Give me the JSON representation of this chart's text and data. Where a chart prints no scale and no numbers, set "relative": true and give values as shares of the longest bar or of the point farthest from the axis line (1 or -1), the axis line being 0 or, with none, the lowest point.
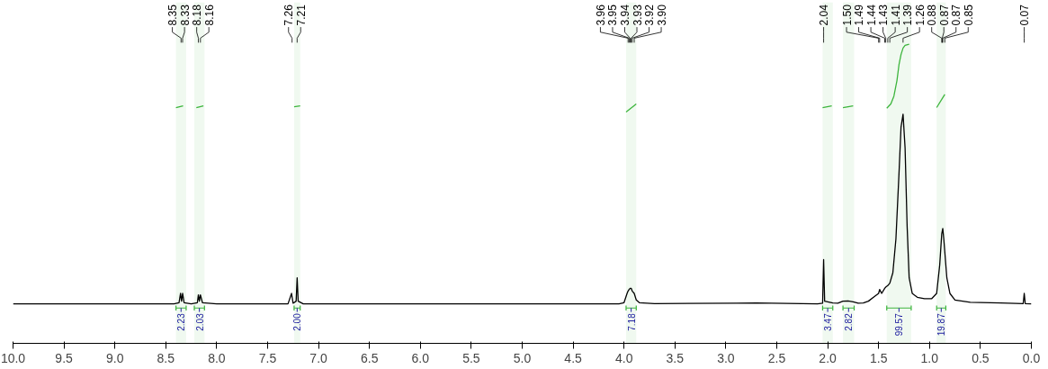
{
  "chart_data": {
    "type": "line",
    "relative": true,
    "tick_labels": "x",
    "grid": false,
    "marker": "none",
    "xlim": [
      10,
      0
    ],
    "xticks": [
      {
        "value": 10,
        "label": "10.0"
      },
      {
        "value": 9.5,
        "label": "9.5"
      },
      {
        "value": 9,
        "label": "9.0"
      },
      {
        "value": 8.5,
        "label": "8.5"
      },
      {
        "value": 8,
        "label": "8.0"
      },
      {
        "value": 7.5,
        "label": "7.5"
      },
      {
        "value": 7,
        "label": "7.0"
      },
      {
        "value": 6.5,
        "label": "6.5"
      },
      {
        "value": 6,
        "label": "6.0"
      },
      {
        "value": 5.5,
        "label": "5.5"
      },
      {
        "value": 5,
        "label": "5.0"
      },
      {
        "value": 4.5,
        "label": "4.5"
      },
      {
        "value": 4,
        "label": "4.0"
      },
      {
        "value": 3.5,
        "label": "3.5"
      },
      {
        "value": 3,
        "label": "3.0"
      },
      {
        "value": 2.5,
        "label": "2.5"
      },
      {
        "value": 2,
        "label": "2.0"
      },
      {
        "value": 1.5,
        "label": "1.5"
      },
      {
        "value": 1,
        "label": "1.0"
      },
      {
        "value": 0.5,
        "label": "0.5"
      },
      {
        "value": 0,
        "label": "0.0"
      }
    ],
    "series": [
      {
        "color": "#000000",
        "x": [
          10,
          8.42,
          8.37,
          8.355,
          8.345,
          8.335,
          8.32,
          8.25,
          8.19,
          8.18,
          8.17,
          8.16,
          8.14,
          8.0,
          7.3,
          7.265,
          7.25,
          7.22,
          7.21,
          7.2,
          7.15,
          4.05,
          4.0,
          3.97,
          3.96,
          3.95,
          3.94,
          3.93,
          3.92,
          3.9,
          3.88,
          3.85,
          3.7,
          2.9,
          2.7,
          2.1,
          2.05,
          2.04,
          2.03,
          2.0,
          1.95,
          1.9,
          1.85,
          1.8,
          1.75,
          1.7,
          1.65,
          1.6,
          1.55,
          1.5,
          1.49,
          1.47,
          1.44,
          1.43,
          1.41,
          1.39,
          1.36,
          1.33,
          1.3,
          1.28,
          1.26,
          1.24,
          1.22,
          1.2,
          1.17,
          1.12,
          1.05,
          0.98,
          0.93,
          0.9,
          0.88,
          0.87,
          0.86,
          0.85,
          0.83,
          0.8,
          0.75,
          0.6,
          0.3,
          0.08,
          0.07,
          0.06,
          0
        ],
        "values": [
          0.132,
          0.132,
          0.136,
          0.167,
          0.141,
          0.167,
          0.136,
          0.132,
          0.136,
          0.162,
          0.141,
          0.162,
          0.136,
          0.132,
          0.132,
          0.167,
          0.134,
          0.141,
          0.219,
          0.141,
          0.132,
          0.132,
          0.136,
          0.167,
          0.175,
          0.18,
          0.184,
          0.184,
          0.175,
          0.167,
          0.145,
          0.136,
          0.133,
          0.134,
          0.135,
          0.132,
          0.134,
          0.28,
          0.141,
          0.139,
          0.135,
          0.134,
          0.141,
          0.142,
          0.139,
          0.134,
          0.135,
          0.141,
          0.154,
          0.167,
          0.18,
          0.167,
          0.184,
          0.188,
          0.193,
          0.201,
          0.236,
          0.349,
          0.566,
          0.722,
          0.766,
          0.653,
          0.392,
          0.219,
          0.167,
          0.154,
          0.149,
          0.149,
          0.167,
          0.262,
          0.366,
          0.384,
          0.349,
          0.306,
          0.219,
          0.167,
          0.145,
          0.137,
          0.135,
          0.133,
          0.167,
          0.133,
          0.132
        ]
      },
      {
        "color": "#3cb43c",
        "x": [
          8.4,
          8.33
        ],
        "values": [
          0.788,
          0.794
        ]
      },
      {
        "color": "#3cb43c",
        "x": [
          8.2,
          8.13
        ],
        "values": [
          0.788,
          0.794
        ]
      },
      {
        "color": "#3cb43c",
        "x": [
          7.24,
          7.18
        ],
        "values": [
          0.791,
          0.794
        ]
      },
      {
        "color": "#3cb43c",
        "x": [
          3.98,
          3.88
        ],
        "values": [
          0.773,
          0.8
        ]
      },
      {
        "color": "#3cb43c",
        "x": [
          2.05,
          1.96
        ],
        "values": [
          0.788,
          0.794
        ]
      },
      {
        "color": "#3cb43c",
        "x": [
          1.85,
          1.75
        ],
        "values": [
          0.788,
          0.794
        ]
      },
      {
        "color": "#3cb43c",
        "x": [
          1.42,
          1.38,
          1.35,
          1.32,
          1.3,
          1.28,
          1.26,
          1.24,
          1.2
        ],
        "values": [
          0.786,
          0.8,
          0.826,
          0.878,
          0.931,
          0.965,
          0.987,
          0.996,
          1.0
        ]
      },
      {
        "color": "#3cb43c",
        "x": [
          0.93,
          0.85
        ],
        "values": [
          0.788,
          0.832
        ]
      }
    ],
    "bands": [
      {
        "axis": "x",
        "from": 8.4,
        "to": 8.3,
        "label": "2.23",
        "color": "#3cb43c"
      },
      {
        "axis": "x",
        "from": 8.22,
        "to": 8.12,
        "label": "2.03",
        "color": "#3cb43c"
      },
      {
        "axis": "x",
        "from": 7.24,
        "to": 7.18,
        "label": "2.00",
        "color": "#3cb43c"
      },
      {
        "axis": "x",
        "from": 3.98,
        "to": 3.88,
        "label": "7.18",
        "color": "#3cb43c"
      },
      {
        "axis": "x",
        "from": 2.05,
        "to": 1.95,
        "label": "3.47",
        "color": "#3cb43c"
      },
      {
        "axis": "x",
        "from": 1.85,
        "to": 1.74,
        "label": "2.82",
        "color": "#3cb43c"
      },
      {
        "axis": "x",
        "from": 1.42,
        "to": 1.18,
        "label": "99.57",
        "color": "#3cb43c"
      },
      {
        "axis": "x",
        "from": 0.93,
        "to": 0.84,
        "label": "19.87",
        "color": "#3cb43c"
      }
    ],
    "annotations": [
      {
        "text": "8.35",
        "x": 8.35
      },
      {
        "text": "8.33",
        "x": 8.335
      },
      {
        "text": "8.18",
        "x": 8.18
      },
      {
        "text": "8.16",
        "x": 8.16
      },
      {
        "text": "7.26",
        "x": 7.26
      },
      {
        "text": "7.21",
        "x": 7.21
      },
      {
        "text": "3.96",
        "x": 3.96
      },
      {
        "text": "3.95",
        "x": 3.95
      },
      {
        "text": "3.94",
        "x": 3.94
      },
      {
        "text": "3.93",
        "x": 3.93
      },
      {
        "text": "3.92",
        "x": 3.92
      },
      {
        "text": "3.90",
        "x": 3.9
      },
      {
        "text": "2.04",
        "x": 2.04
      },
      {
        "text": "1.50",
        "x": 1.5
      },
      {
        "text": "1.49",
        "x": 1.49
      },
      {
        "text": "1.44",
        "x": 1.44
      },
      {
        "text": "1.43",
        "x": 1.43
      },
      {
        "text": "1.41",
        "x": 1.41
      },
      {
        "text": "1.39",
        "x": 1.39
      },
      {
        "text": "1.26",
        "x": 1.26
      },
      {
        "text": "0.88",
        "x": 0.88
      },
      {
        "text": "0.87",
        "x": 0.875
      },
      {
        "text": "0.87",
        "x": 0.87
      },
      {
        "text": "0.85",
        "x": 0.85
      },
      {
        "text": "0.07",
        "x": 0.07
      }
    ]
  }
}
